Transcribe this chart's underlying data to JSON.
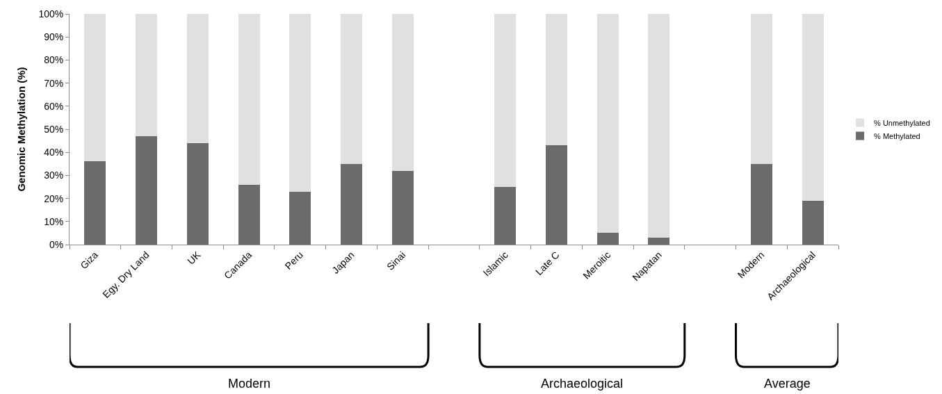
{
  "chart_data": {
    "type": "bar",
    "stacked": true,
    "ylabel": "Genomic Methylation (%)",
    "categories": [
      "Giza",
      "Egy. Dry Land",
      "UK",
      "Canada",
      "Peru",
      "Japan",
      "Sinai",
      null,
      "Islamic",
      "Late C",
      "Meroitic",
      "Napatan",
      null,
      "Modern",
      "Archaeological"
    ],
    "series": [
      {
        "name": "% Methylated",
        "color": "#6b6b6b",
        "values": [
          36,
          47,
          44,
          26,
          23,
          35,
          32,
          null,
          25,
          43,
          5,
          3,
          null,
          35,
          19
        ]
      },
      {
        "name": "% Unmethylated",
        "color": "#e0e0e0",
        "values": [
          64,
          53,
          56,
          74,
          77,
          65,
          68,
          null,
          75,
          57,
          95,
          97,
          null,
          65,
          81
        ]
      }
    ],
    "ylim": [
      0,
      100
    ],
    "yticks": [
      {
        "value": 0,
        "label": "0%"
      },
      {
        "value": 10,
        "label": "10%"
      },
      {
        "value": 20,
        "label": "20%"
      },
      {
        "value": 30,
        "label": "30%"
      },
      {
        "value": 40,
        "label": "40%"
      },
      {
        "value": 50,
        "label": "50%"
      },
      {
        "value": 60,
        "label": "60%"
      },
      {
        "value": 70,
        "label": "70%"
      },
      {
        "value": 80,
        "label": "80%"
      },
      {
        "value": 90,
        "label": "90%"
      },
      {
        "value": 100,
        "label": "100%"
      }
    ],
    "legend": "right",
    "annotations": [
      "Modern",
      "Archaeological",
      "Average"
    ]
  }
}
